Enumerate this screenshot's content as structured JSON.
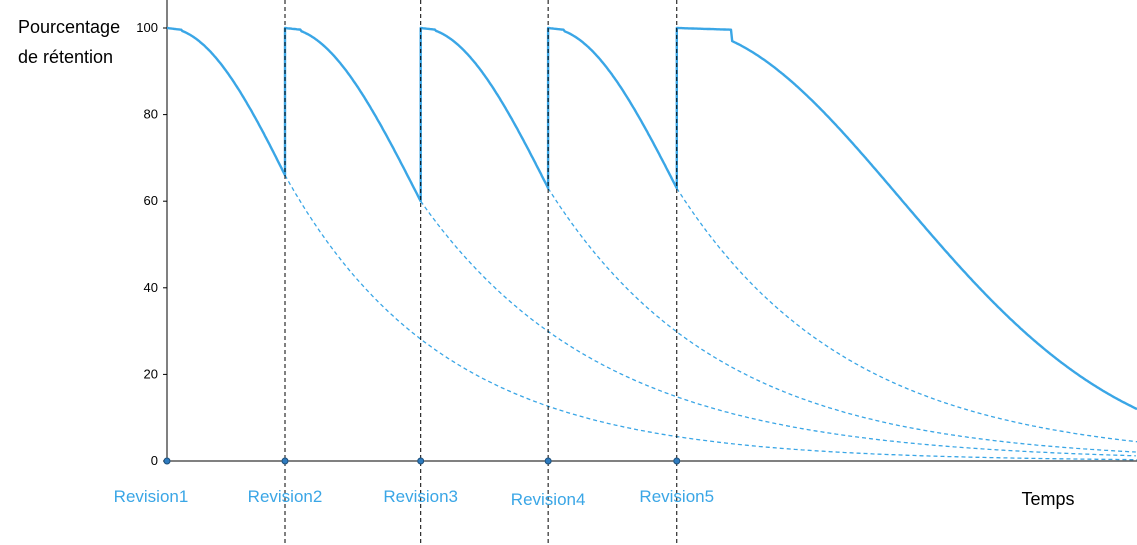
{
  "chart_data": {
    "type": "line",
    "ylabel_lines": [
      "Pourcentage",
      "de rétention"
    ],
    "xlabel": "Temps",
    "yticks": [
      0,
      20,
      40,
      60,
      80,
      100
    ],
    "ylim": [
      0,
      100
    ],
    "grid": false,
    "revisions": [
      {
        "label": "Revision1",
        "t": 0
      },
      {
        "label": "Revision2",
        "t": 1
      },
      {
        "label": "Revision3",
        "t": 2.15
      },
      {
        "label": "Revision4",
        "t": 3.23
      },
      {
        "label": "Revision5",
        "t": 4.32
      }
    ],
    "retention_at_next_revision": [
      66,
      60,
      63,
      63
    ],
    "final_retention": 12,
    "colors": {
      "curve": "#3aa6e6",
      "axis": "#000000",
      "guide": "#000000",
      "dashed": "#3aa6e6"
    }
  }
}
